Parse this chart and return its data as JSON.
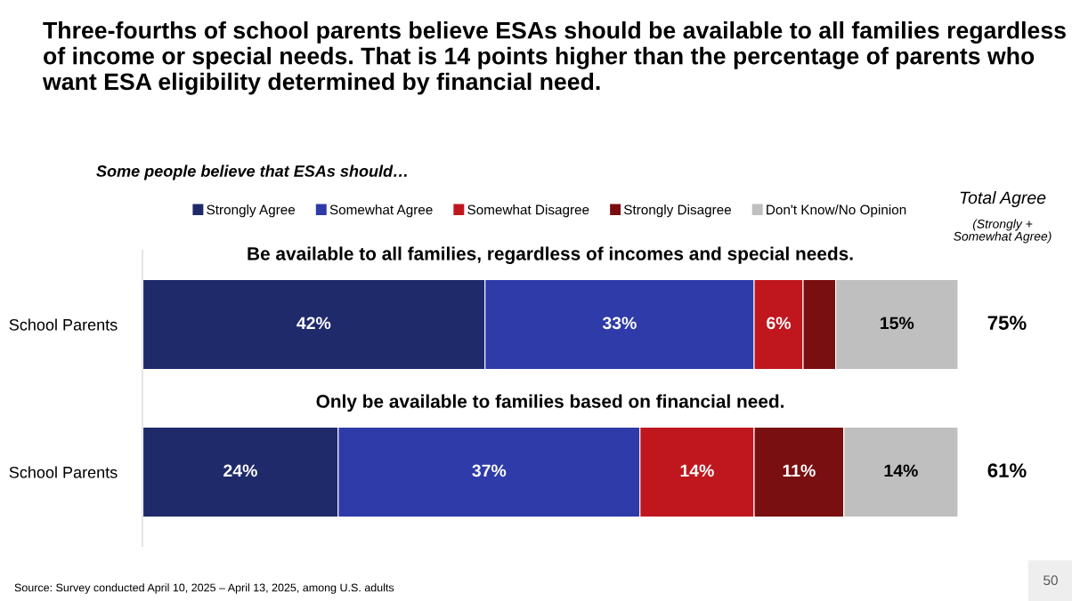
{
  "chart_data": {
    "type": "bar",
    "orientation": "horizontal",
    "stacked": true,
    "title": "Three-fourths of school parents believe ESAs should be available to all families regardless of income or special needs. That is 14 points higher than the percentage of parents who want ESA eligibility determined by financial need.",
    "categories": [
      "School Parents",
      "School Parents"
    ],
    "series": [
      {
        "name": "Strongly Agree",
        "color": "#1f2a6b",
        "values": [
          42,
          24
        ],
        "value_labels": [
          "42%",
          "24%"
        ]
      },
      {
        "name": "Somewhat Agree",
        "color": "#2e3ba8",
        "values": [
          33,
          37
        ],
        "value_labels": [
          "33%",
          "37%"
        ]
      },
      {
        "name": "Somewhat Disagree",
        "color": "#c0171e",
        "values": [
          6,
          14
        ],
        "value_labels": [
          "6%",
          "14%"
        ]
      },
      {
        "name": "Strongly Disagree",
        "color": "#7a0f12",
        "values": [
          4,
          11
        ],
        "value_labels": [
          null,
          "11%"
        ]
      },
      {
        "name": "Don't Know/No Opinion",
        "color": "#bfbfbf",
        "values": [
          15,
          14
        ],
        "value_labels": [
          "15%",
          "14%"
        ]
      }
    ],
    "legend": "top",
    "annotations": [
      "Be available to all families, regardless of incomes and special needs.",
      "Only be available to families based on financial need.",
      "Some people believe that ESAs should…",
      "Total Agree",
      "(Strongly + Somewhat Agree)",
      "75%",
      "61%",
      "Source: Survey conducted April 10, 2025 – April 13, 2025, among U.S. adults",
      "50"
    ]
  }
}
